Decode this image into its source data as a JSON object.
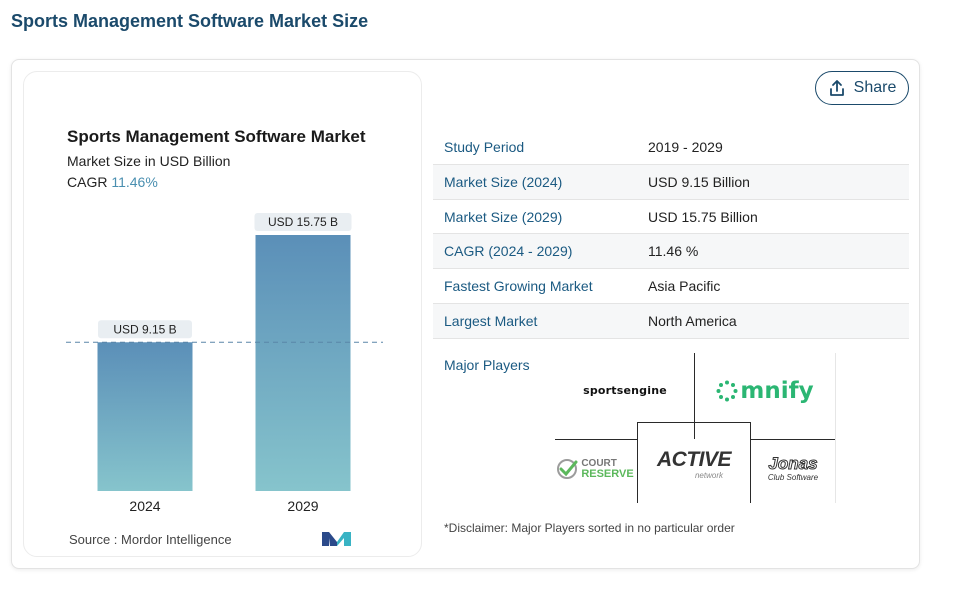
{
  "page_title": "Sports Management Software Market Size",
  "share_label": "Share",
  "chart": {
    "title": "Sports Management Software Market",
    "subtitle": "Market Size in USD Billion",
    "cagr_label": "CAGR",
    "cagr_value": "11.46%",
    "source": "Source :  Mordor Intelligence"
  },
  "chart_data": {
    "type": "bar",
    "title": "Sports Management Software Market",
    "subtitle": "Market Size in USD Billion",
    "categories": [
      "2024",
      "2029"
    ],
    "values": [
      9.15,
      15.75
    ],
    "data_labels": [
      "USD 9.15 B",
      "USD 15.75 B"
    ],
    "reference_line": 9.15,
    "colors": {
      "bar_top": "#5b8fb8",
      "bar_bottom": "#86c4cc",
      "label_bg": "#e9eef2",
      "dashed_line": "#5a86a8"
    }
  },
  "table": [
    {
      "key": "Study Period",
      "value": "2019 - 2029"
    },
    {
      "key": "Market Size (2024)",
      "value": "USD 9.15 Billion"
    },
    {
      "key": "Market Size (2029)",
      "value": "USD 15.75 Billion"
    },
    {
      "key": "CAGR (2024 - 2029)",
      "value": "11.46 %"
    },
    {
      "key": "Fastest Growing Market",
      "value": "Asia Pacific"
    },
    {
      "key": "Largest Market",
      "value": "North America"
    }
  ],
  "players_label": "Major Players",
  "players": {
    "sportsengine": "sportsengine",
    "omnify": "mnify",
    "court_top": "COURT",
    "court_bottom": "RESERVE",
    "active": "ACTIVE",
    "active_sub": "network",
    "jonas": "Jonas",
    "jonas_sub": "Club Software"
  },
  "disclaimer": "*Disclaimer: Major Players sorted in no particular order"
}
